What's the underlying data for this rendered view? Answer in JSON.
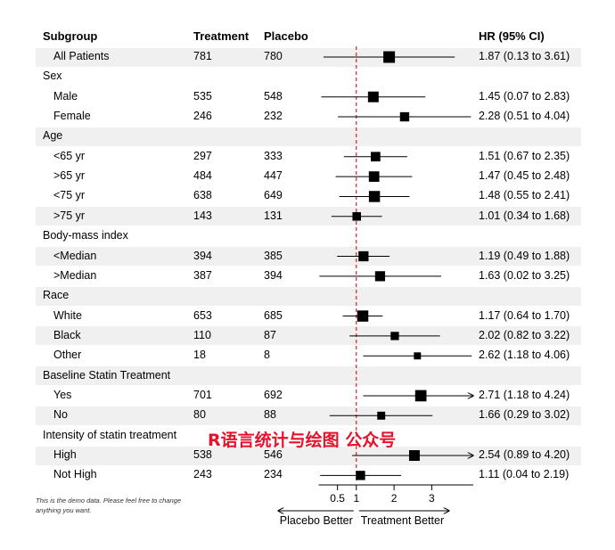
{
  "header": {
    "subgroup": "Subgroup",
    "treatment": "Treatment",
    "placebo": "Placebo",
    "hr": "HR (95% CI)"
  },
  "rows": [
    {
      "label": "All Patients",
      "indent": true,
      "treatment": "781",
      "placebo": "780",
      "hr_text": "1.87 (0.13 to 3.61)",
      "shaded": true,
      "header": false
    },
    {
      "label": "Sex",
      "indent": false,
      "treatment": "",
      "placebo": "",
      "hr_text": "",
      "shaded": false,
      "header": true
    },
    {
      "label": "Male",
      "indent": true,
      "treatment": "535",
      "placebo": "548",
      "hr_text": "1.45 (0.07 to 2.83)",
      "shaded": false,
      "header": false
    },
    {
      "label": "Female",
      "indent": true,
      "treatment": "246",
      "placebo": "232",
      "hr_text": "2.28 (0.51 to 4.04)",
      "shaded": false,
      "header": false
    },
    {
      "label": "Age",
      "indent": false,
      "treatment": "",
      "placebo": "",
      "hr_text": "",
      "shaded": true,
      "header": true
    },
    {
      "label": "<65 yr",
      "indent": true,
      "treatment": "297",
      "placebo": "333",
      "hr_text": "1.51 (0.67 to 2.35)",
      "shaded": false,
      "header": false
    },
    {
      "label": ">65 yr",
      "indent": true,
      "treatment": "484",
      "placebo": "447",
      "hr_text": "1.47 (0.45 to 2.48)",
      "shaded": false,
      "header": false
    },
    {
      "label": "<75 yr",
      "indent": true,
      "treatment": "638",
      "placebo": "649",
      "hr_text": "1.48 (0.55 to 2.41)",
      "shaded": false,
      "header": false
    },
    {
      "label": ">75 yr",
      "indent": true,
      "treatment": "143",
      "placebo": "131",
      "hr_text": "1.01 (0.34 to 1.68)",
      "shaded": true,
      "header": false
    },
    {
      "label": "Body-mass index",
      "indent": false,
      "treatment": "",
      "placebo": "",
      "hr_text": "",
      "shaded": false,
      "header": true
    },
    {
      "label": "<Median",
      "indent": true,
      "treatment": "394",
      "placebo": "385",
      "hr_text": "1.19 (0.49 to 1.88)",
      "shaded": true,
      "header": false
    },
    {
      "label": ">Median",
      "indent": true,
      "treatment": "387",
      "placebo": "394",
      "hr_text": "1.63 (0.02 to 3.25)",
      "shaded": false,
      "header": false
    },
    {
      "label": "Race",
      "indent": false,
      "treatment": "",
      "placebo": "",
      "hr_text": "",
      "shaded": true,
      "header": true
    },
    {
      "label": "White",
      "indent": true,
      "treatment": "653",
      "placebo": "685",
      "hr_text": "1.17 (0.64 to 1.70)",
      "shaded": false,
      "header": false
    },
    {
      "label": "Black",
      "indent": true,
      "treatment": "110",
      "placebo": "87",
      "hr_text": "2.02 (0.82 to 3.22)",
      "shaded": true,
      "header": false
    },
    {
      "label": "Other",
      "indent": true,
      "treatment": "18",
      "placebo": "8",
      "hr_text": "2.62 (1.18 to 4.06)",
      "shaded": false,
      "header": false
    },
    {
      "label": "Baseline Statin Treatment",
      "indent": false,
      "treatment": "",
      "placebo": "",
      "hr_text": "",
      "shaded": true,
      "header": true
    },
    {
      "label": "Yes",
      "indent": true,
      "treatment": "701",
      "placebo": "692",
      "hr_text": "2.71 (1.18 to 4.24)",
      "shaded": false,
      "header": false
    },
    {
      "label": "No",
      "indent": true,
      "treatment": "80",
      "placebo": "88",
      "hr_text": "1.66 (0.29 to 3.02)",
      "shaded": true,
      "header": false
    },
    {
      "label": "Intensity of statin treatment",
      "indent": false,
      "treatment": "",
      "placebo": "",
      "hr_text": "",
      "shaded": false,
      "header": true
    },
    {
      "label": "High",
      "indent": true,
      "treatment": "538",
      "placebo": "546",
      "hr_text": "2.54 (0.89 to 4.20)",
      "shaded": true,
      "header": false
    },
    {
      "label": "Not High",
      "indent": true,
      "treatment": "243",
      "placebo": "234",
      "hr_text": "1.11 (0.04 to 2.19)",
      "shaded": false,
      "header": false
    }
  ],
  "chart_data": {
    "type": "forest",
    "x_ticks": [
      0.5,
      1,
      2,
      3
    ],
    "xlim": [
      0,
      3.07
    ],
    "reference_line": 1,
    "reference_line_color": "#c00000",
    "clip_arrow_color": "#000000",
    "direction_labels": {
      "left": "Placebo Better",
      "right": "Treatment Better"
    },
    "points": [
      {
        "label": "All Patients",
        "hr": 1.87,
        "lower": 0.13,
        "upper": 3.61,
        "weight": 781
      },
      {
        "label": "Male",
        "hr": 1.45,
        "lower": 0.07,
        "upper": 2.83,
        "weight": 535
      },
      {
        "label": "Female",
        "hr": 2.28,
        "lower": 0.51,
        "upper": 4.04,
        "weight": 246
      },
      {
        "label": "<65 yr",
        "hr": 1.51,
        "lower": 0.67,
        "upper": 2.35,
        "weight": 297
      },
      {
        "label": ">65 yr",
        "hr": 1.47,
        "lower": 0.45,
        "upper": 2.48,
        "weight": 484
      },
      {
        "label": "<75 yr",
        "hr": 1.48,
        "lower": 0.55,
        "upper": 2.41,
        "weight": 638
      },
      {
        "label": ">75 yr",
        "hr": 1.01,
        "lower": 0.34,
        "upper": 1.68,
        "weight": 143
      },
      {
        "label": "<Median",
        "hr": 1.19,
        "lower": 0.49,
        "upper": 1.88,
        "weight": 394
      },
      {
        "label": ">Median",
        "hr": 1.63,
        "lower": 0.02,
        "upper": 3.25,
        "weight": 387
      },
      {
        "label": "White",
        "hr": 1.17,
        "lower": 0.64,
        "upper": 1.7,
        "weight": 653
      },
      {
        "label": "Black",
        "hr": 2.02,
        "lower": 0.82,
        "upper": 3.22,
        "weight": 110
      },
      {
        "label": "Other",
        "hr": 2.62,
        "lower": 1.18,
        "upper": 4.06,
        "weight": 18
      },
      {
        "label": "Yes",
        "hr": 2.71,
        "lower": 1.18,
        "upper": 4.24,
        "weight": 701
      },
      {
        "label": "No",
        "hr": 1.66,
        "lower": 0.29,
        "upper": 3.02,
        "weight": 80
      },
      {
        "label": "High",
        "hr": 2.54,
        "lower": 0.89,
        "upper": 4.2,
        "weight": 538
      },
      {
        "label": "Not High",
        "hr": 1.11,
        "lower": 0.04,
        "upper": 2.19,
        "weight": 243
      }
    ]
  },
  "footnote": "This is the demo data. Please feel free to change anything you want.",
  "watermark": "R语言统计与绘图 公众号"
}
